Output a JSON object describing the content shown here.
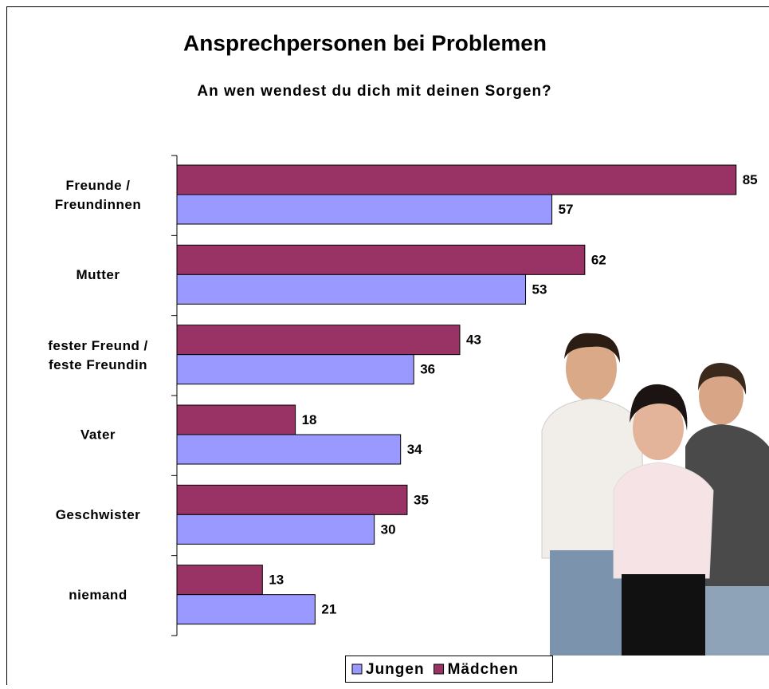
{
  "chart_data": {
    "type": "bar",
    "orientation": "horizontal",
    "title": "Ansprechpersonen bei Problemen",
    "subtitle": "An wen wendest du dich mit deinen Sorgen?",
    "categories": [
      "Freunde / Freundinnen",
      "Mutter",
      "fester Freund / feste Freundin",
      "Vater",
      "Geschwister",
      "niemand"
    ],
    "series": [
      {
        "name": "Mädchen",
        "color": "#993366",
        "values": [
          85,
          62,
          43,
          18,
          35,
          13
        ]
      },
      {
        "name": "Jungen",
        "color": "#9999ff",
        "values": [
          57,
          53,
          36,
          34,
          30,
          21
        ]
      }
    ],
    "xlim": [
      0,
      90
    ]
  }
}
